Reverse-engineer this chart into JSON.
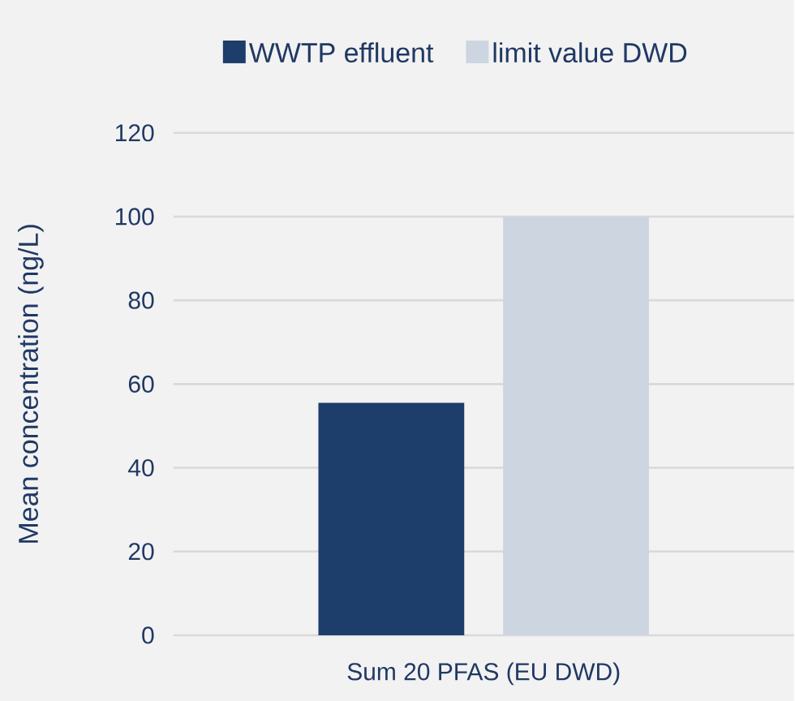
{
  "chart_data": {
    "type": "bar",
    "categories": [
      "Sum 20 PFAS (EU DWD)"
    ],
    "series": [
      {
        "name": "WWTP effluent",
        "color": "#1d3d6b",
        "values": [
          55.5
        ]
      },
      {
        "name": "limit value DWD",
        "color": "#cdd5e0",
        "values": [
          100
        ]
      }
    ],
    "ylabel": "Mean concentration (ng/L)",
    "ylim": [
      0,
      120
    ],
    "yticks": [
      0,
      20,
      40,
      60,
      80,
      100,
      120
    ],
    "grid": "y",
    "legend": "top"
  }
}
